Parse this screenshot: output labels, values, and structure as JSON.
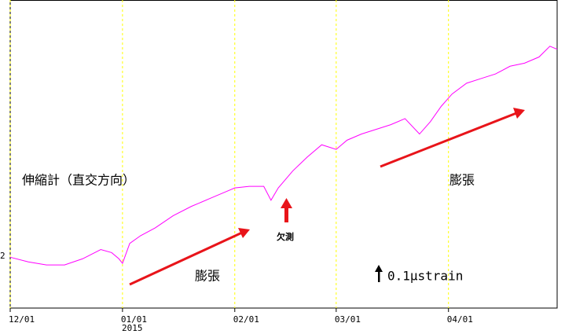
{
  "chart_data": {
    "type": "line",
    "x": [
      0,
      5,
      10,
      15,
      20,
      25,
      28,
      30,
      31,
      33,
      36,
      40,
      45,
      50,
      55,
      60,
      62,
      66,
      70,
      72,
      74,
      78,
      82,
      86,
      90,
      93,
      97,
      101,
      105,
      109,
      113,
      116,
      119,
      122,
      126,
      130,
      134,
      138,
      142,
      146,
      149,
      151
    ],
    "series": [
      {
        "color": "#ff00ff",
        "values": [
          0.33,
          0.3,
          0.28,
          0.28,
          0.32,
          0.38,
          0.36,
          0.32,
          0.29,
          0.42,
          0.47,
          0.52,
          0.6,
          0.66,
          0.71,
          0.76,
          0.78,
          0.79,
          0.79,
          0.7,
          0.78,
          0.89,
          0.98,
          1.06,
          1.03,
          1.09,
          1.13,
          1.16,
          1.19,
          1.23,
          1.13,
          1.21,
          1.31,
          1.39,
          1.46,
          1.49,
          1.52,
          1.57,
          1.59,
          1.63,
          1.7,
          1.68
        ]
      }
    ],
    "xlim": [
      0,
      151
    ],
    "xticks": [
      {
        "value": 0,
        "label": "12/01"
      },
      {
        "value": 31,
        "label": "01/01"
      },
      {
        "value": 62,
        "label": "02/01"
      },
      {
        "value": 90,
        "label": "03/01"
      },
      {
        "value": 121,
        "label": "04/01"
      }
    ],
    "ylim": [
      0,
      2.0
    ],
    "grid": true,
    "grid_color": "#ffff00",
    "annotations": {
      "year": "2015",
      "y_label_fragment": "2",
      "instrument": "伸縮計（直交方向）",
      "expansion_1": "膨張",
      "missing": "欠測",
      "expansion_2": "膨張",
      "scale": "0.1μstrain"
    }
  }
}
